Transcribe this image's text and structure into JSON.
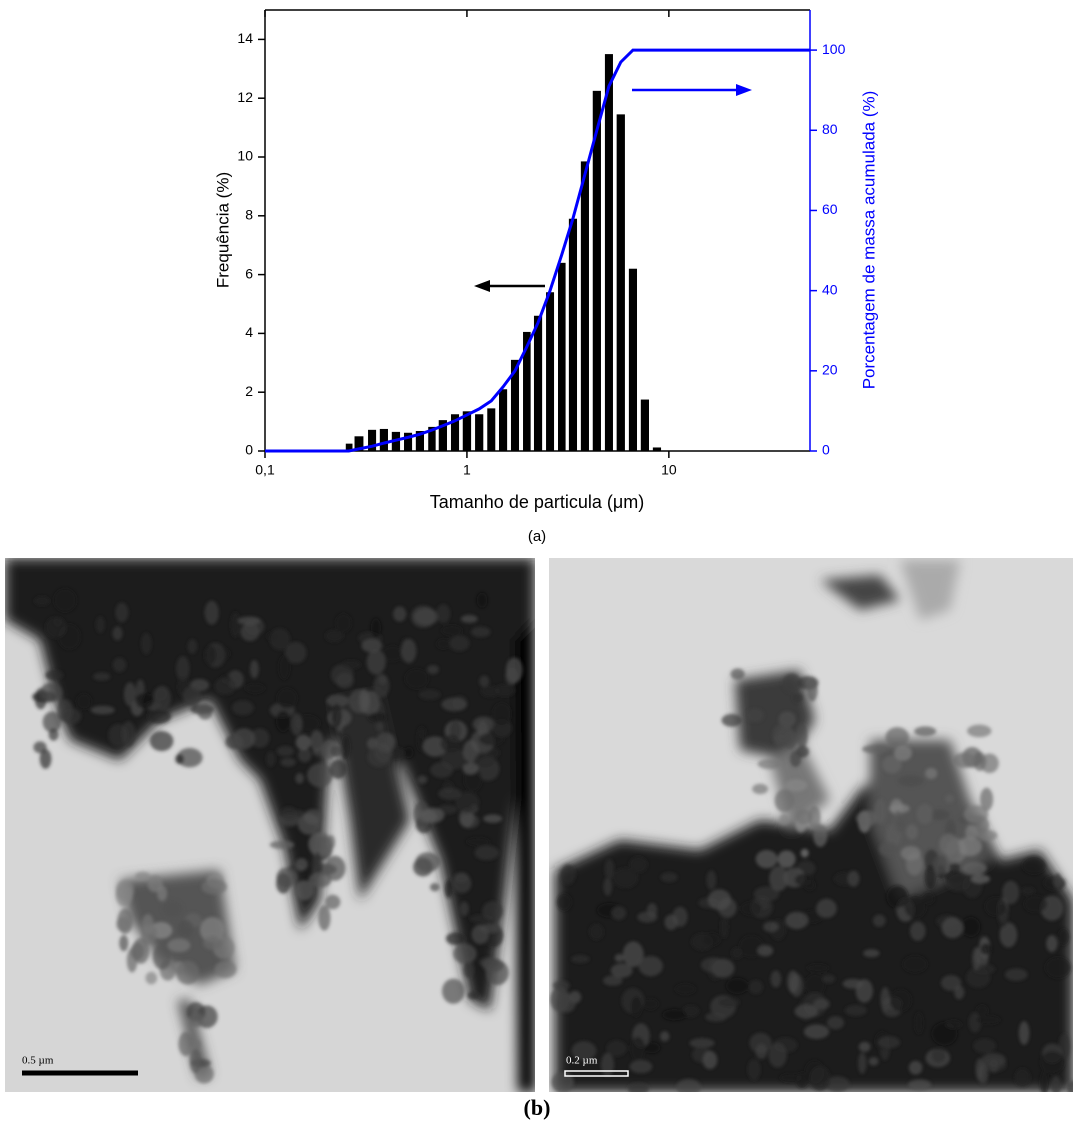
{
  "chart_data": {
    "type": "bar",
    "x_label": "Tamanho de particula (μm)",
    "y_label": "Frequência (%)",
    "y2_label": "Porcentagem de massa acumulada (%)",
    "caption": "(a)",
    "log_x": true,
    "xlim": [
      0.1,
      50
    ],
    "xticks": [
      {
        "value": 0.1,
        "label": "0,1"
      },
      1,
      10
    ],
    "ylim": [
      0,
      15
    ],
    "yticks": [
      0,
      2,
      4,
      6,
      8,
      10,
      12,
      14
    ],
    "y2lim": [
      0,
      110
    ],
    "y2ticks": [
      0,
      20,
      40,
      60,
      80,
      100
    ],
    "y2_color": "#0000ff",
    "series": [
      {
        "type": "bar",
        "color": "#000000",
        "x": [
          0.261,
          0.292,
          0.339,
          0.388,
          0.445,
          0.511,
          0.585,
          0.671,
          0.76,
          0.873,
          1.0,
          1.15,
          1.32,
          1.51,
          1.73,
          1.98,
          2.25,
          2.58,
          2.95,
          3.35,
          3.84,
          4.4,
          5.05,
          5.78,
          6.64,
          7.61,
          8.73
        ],
        "values": [
          0.25,
          0.5,
          0.72,
          0.75,
          0.65,
          0.62,
          0.68,
          0.82,
          1.05,
          1.25,
          1.35,
          1.25,
          1.45,
          2.1,
          3.1,
          4.05,
          4.6,
          5.4,
          6.4,
          7.9,
          9.85,
          12.25,
          13.5,
          11.45,
          6.2,
          1.75,
          0.12
        ]
      },
      {
        "type": "line",
        "color": "#0000ff",
        "axis": "y2",
        "x": [
          0.1,
          0.26,
          0.29,
          0.34,
          0.39,
          0.445,
          0.51,
          0.585,
          0.67,
          0.76,
          0.87,
          1.0,
          1.15,
          1.32,
          1.51,
          1.73,
          1.98,
          2.25,
          2.58,
          2.95,
          3.35,
          3.84,
          4.4,
          5.05,
          5.78,
          6.64,
          7.61,
          50
        ],
        "values": [
          0,
          0,
          0.5,
          1.2,
          2,
          2.7,
          3.4,
          4.2,
          5.2,
          6.3,
          7.5,
          9,
          10.5,
          12.5,
          16,
          20,
          26,
          32,
          40,
          49,
          58,
          69,
          80,
          91,
          97,
          100,
          100,
          100
        ]
      }
    ]
  },
  "figure": {
    "panel_b_label": "(b)",
    "micrographs": [
      {
        "scale_bar_label": "0.5 µm"
      },
      {
        "scale_bar_label": "0.2 µm"
      }
    ]
  }
}
